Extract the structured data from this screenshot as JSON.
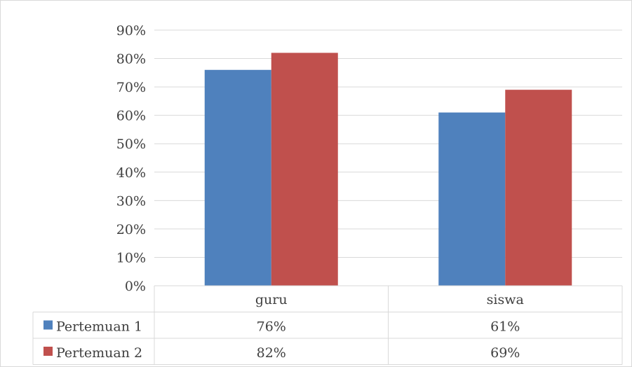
{
  "chart_data": {
    "type": "bar",
    "categories": [
      "guru",
      "siswa"
    ],
    "series": [
      {
        "name": "Pertemuan 1",
        "values": [
          76,
          61
        ],
        "labels": [
          "76%",
          "61%"
        ],
        "color": "#4f81bd"
      },
      {
        "name": "Pertemuan 2",
        "values": [
          82,
          69
        ],
        "labels": [
          "82%",
          "69%"
        ],
        "color": "#c0504d"
      }
    ],
    "ylim": [
      0,
      90
    ],
    "yticks": [
      0,
      10,
      20,
      30,
      40,
      50,
      60,
      70,
      80,
      90
    ],
    "ytick_labels": [
      "0%",
      "10%",
      "20%",
      "30%",
      "40%",
      "50%",
      "60%",
      "70%",
      "80%",
      "90%"
    ],
    "grid": true,
    "data_table": true,
    "legend": "data-table-left"
  }
}
